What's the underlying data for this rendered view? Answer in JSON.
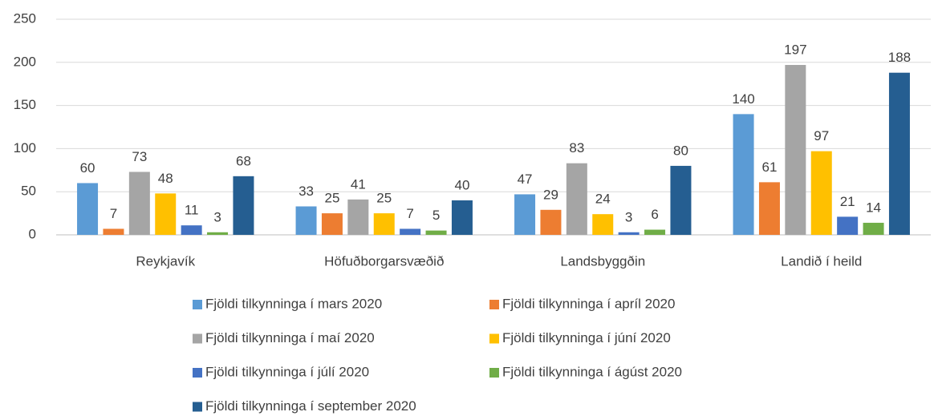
{
  "chart_data": {
    "type": "bar",
    "categories": [
      "Reykjavík",
      "Höfuðborgarsvæðið",
      "Landsbyggðin",
      "Landið í heild"
    ],
    "series": [
      {
        "name": "Fjöldi tilkynninga í mars 2020",
        "color": "#5b9bd5",
        "values": [
          60,
          33,
          47,
          140
        ]
      },
      {
        "name": "Fjöldi tilkynninga í apríl 2020",
        "color": "#ed7d31",
        "values": [
          7,
          25,
          29,
          61
        ]
      },
      {
        "name": "Fjöldi tilkynninga í maí 2020",
        "color": "#a5a5a5",
        "values": [
          73,
          41,
          83,
          197
        ]
      },
      {
        "name": "Fjöldi tilkynninga í júní 2020",
        "color": "#ffc000",
        "values": [
          48,
          25,
          24,
          97
        ]
      },
      {
        "name": "Fjöldi tilkynninga í júlí 2020",
        "color": "#4472c4",
        "values": [
          11,
          7,
          3,
          21
        ]
      },
      {
        "name": "Fjöldi tilkynninga í ágúst 2020",
        "color": "#70ad47",
        "values": [
          3,
          5,
          6,
          14
        ]
      },
      {
        "name": "Fjöldi tilkynninga í september 2020",
        "color": "#255e91",
        "values": [
          68,
          40,
          80,
          188
        ]
      }
    ],
    "ylim": [
      0,
      250
    ],
    "yticks": [
      0,
      50,
      100,
      150,
      200,
      250
    ],
    "grid": true,
    "legend": "bottom"
  }
}
